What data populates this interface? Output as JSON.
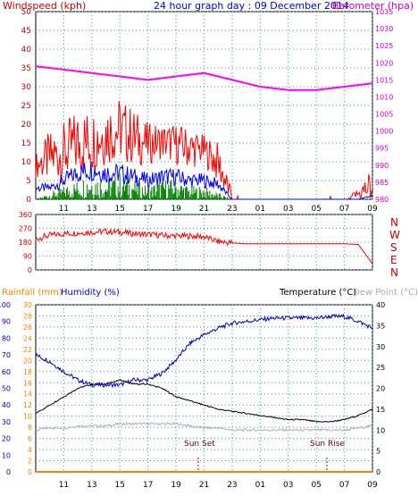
{
  "header": {
    "left_label": "Windspeed (kph)",
    "title": "24 hour graph day : 09 December 2014",
    "right_label": "Barometer (hpa)"
  },
  "panel3_header": {
    "rain_label": "Rainfall (mm)",
    "humidity_label": "Humidity (%)",
    "temp_label": "Temperature (°C)",
    "dew_label": "Dew Point (°C)"
  },
  "compass": [
    "N",
    "W",
    "S",
    "E",
    "N"
  ],
  "sun": {
    "set_label": "Sun Set",
    "rise_label": "Sun Rise"
  },
  "colors": {
    "wind": "#ff0000",
    "gust": "#0000ff",
    "calm": "#008000",
    "baro": "#ff00ff",
    "temp": "#000000",
    "dew": "#b0b0b0",
    "humidity": "#0000cc",
    "rain": "#ff8000",
    "axis_red": "#cc0000",
    "axis_blue": "#0000cc",
    "axis_orange": "#ff8000"
  },
  "chart_data": [
    {
      "type": "line",
      "name": "wind_baro",
      "x_ticks": [
        "11",
        "13",
        "15",
        "17",
        "19",
        "21",
        "23",
        "01",
        "03",
        "05",
        "07",
        "09"
      ],
      "ylim_left": [
        0,
        50
      ],
      "ylim_right": [
        980,
        1035
      ],
      "left_ticks": [
        "0",
        "5",
        "10",
        "15",
        "20",
        "25",
        "30",
        "35",
        "40",
        "45",
        "50"
      ],
      "right_ticks": [
        "980",
        "985",
        "990",
        "995",
        "1000",
        "1005",
        "1010",
        "1015",
        "1020",
        "1025",
        "1030",
        "1035"
      ],
      "hours": [
        9,
        10,
        11,
        12,
        13,
        14,
        15,
        16,
        17,
        18,
        19,
        20,
        21,
        22,
        23,
        24,
        25,
        26,
        27,
        28,
        29,
        30,
        31,
        32,
        33
      ],
      "windspeed_mean": [
        8,
        9,
        10,
        12,
        13,
        15,
        16,
        14,
        13,
        14,
        13,
        12,
        12,
        8,
        0,
        0,
        0,
        0,
        0,
        0,
        0,
        0,
        0,
        1,
        2
      ],
      "windspeed_peak": [
        12,
        18,
        20,
        24,
        24,
        26,
        27,
        24,
        20,
        20,
        20,
        19,
        17,
        15,
        2,
        0,
        0,
        0,
        0,
        0,
        0,
        1,
        0,
        3,
        9
      ],
      "gust": [
        3,
        3,
        5,
        7,
        8,
        7,
        7,
        6,
        5,
        6,
        6,
        5,
        5,
        4,
        0,
        0,
        0,
        0,
        0,
        0,
        0,
        0,
        0,
        0,
        1
      ],
      "calm": [
        0,
        1,
        2,
        3,
        4,
        3,
        4,
        3,
        2,
        3,
        3,
        2,
        2,
        1,
        0,
        0,
        0,
        0,
        0,
        0,
        0,
        0,
        0,
        0,
        0
      ],
      "barometer": [
        1019,
        1018.5,
        1018,
        1017.5,
        1017,
        1016.5,
        1016,
        1015.5,
        1015,
        1015.5,
        1016,
        1016.5,
        1017,
        1016,
        1015,
        1014,
        1013,
        1012.5,
        1012,
        1012,
        1012,
        1012.5,
        1013,
        1013.5,
        1014
      ]
    },
    {
      "type": "scatter",
      "name": "wind_direction",
      "ylim": [
        0,
        360
      ],
      "y_ticks": [
        "0",
        "90",
        "180",
        "270",
        "360"
      ],
      "hours": [
        9,
        10,
        11,
        12,
        13,
        14,
        15,
        16,
        17,
        18,
        19,
        20,
        21,
        22,
        23,
        24,
        25,
        26,
        27,
        28,
        29,
        30,
        31,
        32,
        33
      ],
      "direction": [
        200,
        225,
        235,
        240,
        245,
        250,
        245,
        235,
        230,
        225,
        220,
        220,
        215,
        185,
        175,
        170,
        170,
        170,
        170,
        170,
        170,
        170,
        170,
        165,
        40
      ]
    },
    {
      "type": "line",
      "name": "temp_humidity_rain",
      "humidity_ticks": [
        "0",
        "10",
        "20",
        "30",
        "40",
        "50",
        "60",
        "70",
        "80",
        "90",
        "100"
      ],
      "rain_ticks": [
        "0",
        "2",
        "4",
        "6",
        "8",
        "10",
        "12",
        "14",
        "16",
        "18",
        "20",
        "22",
        "24",
        "26",
        "28",
        "30"
      ],
      "temp_ticks": [
        "0",
        "5",
        "10",
        "15",
        "20",
        "25",
        "30",
        "35",
        "40"
      ],
      "hours": [
        9,
        10,
        11,
        12,
        13,
        14,
        15,
        16,
        17,
        18,
        19,
        20,
        21,
        22,
        23,
        24,
        25,
        26,
        27,
        28,
        29,
        30,
        31,
        32,
        33
      ],
      "temperature": [
        14,
        16,
        18,
        20,
        21,
        21,
        22,
        21,
        21,
        20,
        18,
        17,
        16,
        15,
        14.5,
        14,
        13.5,
        13,
        12.5,
        12.5,
        12,
        12,
        12.5,
        13.5,
        15
      ],
      "dewpoint": [
        10,
        10.5,
        10.5,
        11,
        11,
        11,
        11.5,
        11.5,
        11.5,
        11.5,
        11.5,
        11,
        10.5,
        10.5,
        10,
        10,
        10,
        10,
        10,
        10,
        10,
        10,
        10,
        10.5,
        11
      ],
      "humidity": [
        70,
        66,
        60,
        55,
        52,
        52,
        52,
        55,
        55,
        59,
        67,
        77,
        82,
        86,
        89,
        90,
        91,
        92,
        92,
        92,
        92,
        93,
        93,
        90,
        86
      ],
      "rainfall": [
        0,
        0,
        0,
        0,
        0,
        0,
        0,
        0,
        0,
        0,
        0,
        0,
        0,
        0,
        0,
        0,
        0,
        0,
        0,
        0,
        0,
        0,
        0,
        0,
        0
      ]
    }
  ]
}
